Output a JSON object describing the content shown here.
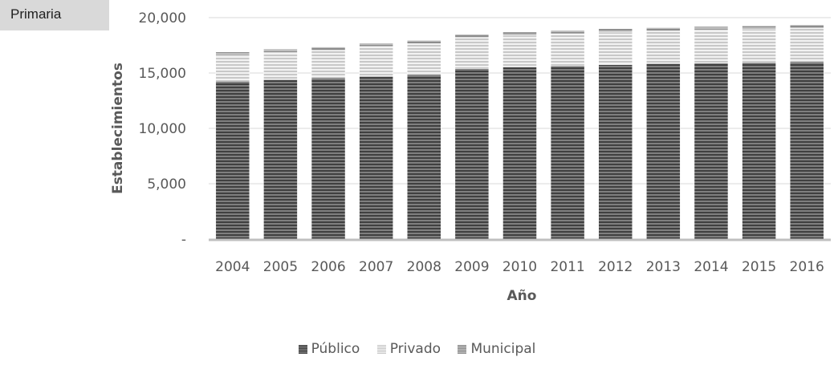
{
  "tag": {
    "label": "Primaria"
  },
  "chart_data": {
    "type": "bar",
    "stacked": true,
    "title": "",
    "xlabel": "Año",
    "ylabel": "Establecimientos",
    "ylim": [
      0,
      20000
    ],
    "yticks": [
      0,
      5000,
      10000,
      15000,
      20000
    ],
    "ytick_labels": [
      "-",
      "5,000",
      "10,000",
      "15,000",
      "20,000"
    ],
    "grid": true,
    "legend_position": "bottom",
    "categories": [
      "2004",
      "2005",
      "2006",
      "2007",
      "2008",
      "2009",
      "2010",
      "2011",
      "2012",
      "2013",
      "2014",
      "2015",
      "2016"
    ],
    "series": [
      {
        "name": "Público",
        "color": "#595959",
        "values": [
          14250,
          14400,
          14550,
          14700,
          14850,
          15400,
          15550,
          15650,
          15750,
          15850,
          15900,
          15950,
          16000
        ]
      },
      {
        "name": "Privado",
        "color": "#d9d9d9",
        "values": [
          2350,
          2450,
          2500,
          2700,
          2800,
          2800,
          2850,
          2900,
          2950,
          2950,
          3000,
          3000,
          3050
        ]
      },
      {
        "name": "Municipal",
        "color": "#a6a6a6",
        "values": [
          300,
          300,
          300,
          300,
          300,
          300,
          300,
          300,
          300,
          300,
          300,
          300,
          300
        ]
      }
    ]
  }
}
